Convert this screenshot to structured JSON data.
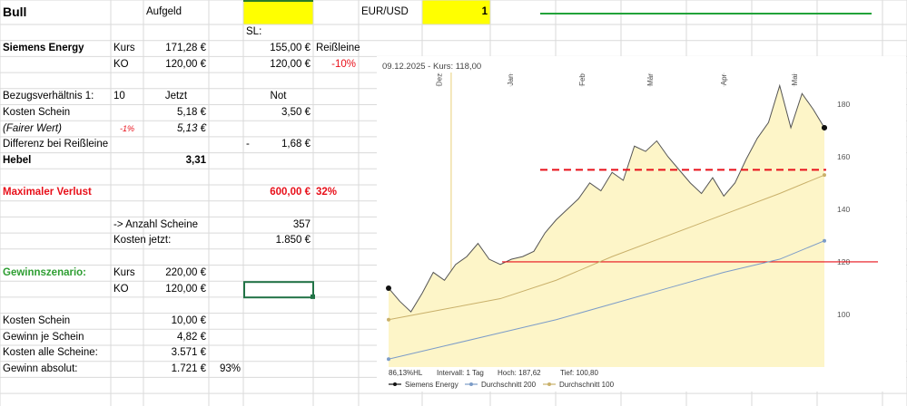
{
  "sheet": {
    "rows": [
      [
        "Bull",
        null,
        "Aufgeld",
        null,
        null,
        null,
        "EUR/USD",
        "1"
      ],
      [
        null,
        null,
        null,
        null,
        "SL:"
      ],
      [
        "Siemens Energy",
        "Kurs",
        "171,28 €",
        null,
        "155,00 €",
        "Reißleine"
      ],
      [
        null,
        "KO",
        "120,00 €",
        null,
        "120,00 €",
        "-10%"
      ],
      [],
      [
        "Bezugsverhältnis 1:",
        "10",
        "Jetzt",
        null,
        "Not"
      ],
      [
        "Kosten Schein",
        null,
        "5,18 €",
        null,
        "3,50 €"
      ],
      [
        "(Fairer Wert)",
        "-1%",
        "5,13 €"
      ],
      [
        "Differenz bei Reißleine",
        null,
        null,
        null,
        [
          "-",
          "1,68 €"
        ]
      ],
      [
        "Hebel",
        null,
        "3,31"
      ],
      [],
      [
        "Maximaler Verlust",
        null,
        null,
        null,
        "600,00 €",
        "32%"
      ],
      [],
      [
        null,
        "-> Anzahl Scheine",
        null,
        null,
        "357"
      ],
      [
        null,
        "Kosten jetzt:",
        null,
        null,
        "1.850 €"
      ],
      [],
      [
        "Gewinnszenario:",
        "Kurs",
        "220,00 €"
      ],
      [
        null,
        "KO",
        "120,00 €"
      ],
      [],
      [
        "Kosten Schein",
        null,
        "10,00 €"
      ],
      [
        "Gewinn je Schein",
        null,
        "4,82 €"
      ],
      [
        "Kosten alle Scheine:",
        null,
        "3.571 €"
      ],
      [
        "Gewinn absolut:",
        null,
        "1.721 €",
        "93%"
      ]
    ]
  },
  "chart_data": {
    "type": "line",
    "title": "09.12.2025  -  Kurs: 118,00",
    "xlim": [
      0,
      39
    ],
    "ylim": [
      80,
      192
    ],
    "yticks": [
      100,
      120,
      140,
      160,
      180
    ],
    "grid": false,
    "xticks": [
      {
        "value": 4.5,
        "label": "Dez"
      },
      {
        "value": 10.9,
        "label": "Jan"
      },
      {
        "value": 17.3,
        "label": "Feb"
      },
      {
        "value": 23.4,
        "label": "Mär"
      },
      {
        "value": 30,
        "label": "Apr"
      },
      {
        "value": 36.3,
        "label": "Mai"
      }
    ],
    "marker_x": 5.6,
    "reference_lines": [
      {
        "value": 155,
        "color": "#e8101a",
        "dash": true
      },
      {
        "value": 120,
        "color": "#e8101a",
        "dash": false
      }
    ],
    "series": [
      {
        "name": "Siemens Energy",
        "color": "#555555",
        "fill": "#fdf5c8",
        "x": [
          0,
          1,
          2,
          3,
          4,
          5,
          6,
          7,
          8,
          9,
          10,
          11,
          12,
          13,
          14,
          15,
          16,
          17,
          18,
          19,
          20,
          21,
          22,
          23,
          24,
          25,
          26,
          27,
          28,
          29,
          30,
          31,
          32,
          33,
          34,
          35,
          36,
          37,
          38,
          39
        ],
        "values": [
          110,
          105,
          101,
          108,
          116,
          113,
          119,
          122,
          127,
          121,
          119,
          121,
          122,
          124,
          131,
          136,
          140,
          144,
          150,
          147,
          154,
          151,
          164,
          162,
          166,
          160,
          155,
          150,
          146,
          152,
          145,
          150,
          159,
          167,
          173,
          187,
          171,
          184,
          178,
          171
        ]
      },
      {
        "name": "Durchschnitt 200",
        "color": "#7c9cc8",
        "x": [
          0,
          5,
          10,
          15,
          20,
          25,
          30,
          35,
          39
        ],
        "values": [
          83,
          88,
          93,
          98,
          104,
          110,
          116,
          121,
          128
        ]
      },
      {
        "name": "Durchschnitt 100",
        "color": "#c9b06a",
        "x": [
          0,
          5,
          10,
          15,
          20,
          25,
          30,
          35,
          39
        ],
        "values": [
          98,
          102,
          106,
          113,
          122,
          130,
          138,
          146,
          153
        ]
      }
    ],
    "footer": [
      "86,13%HL",
      "Intervall: 1 Tag",
      "Hoch: 187,62",
      "Tief: 100,80"
    ]
  }
}
